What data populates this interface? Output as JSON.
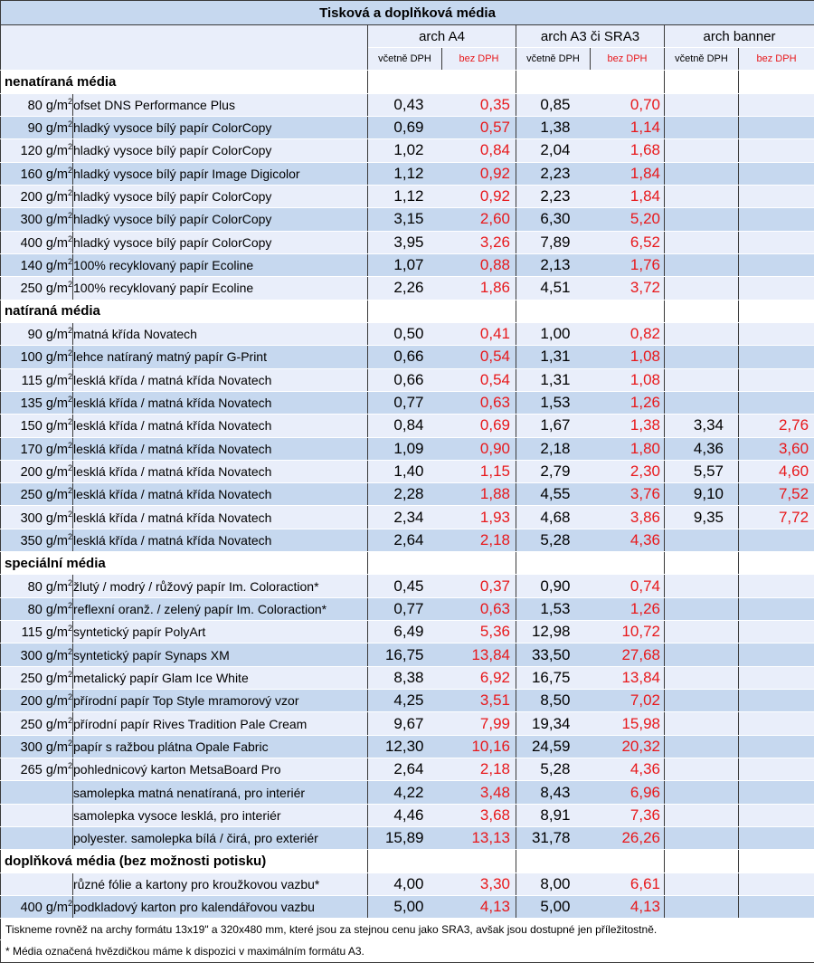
{
  "title": "Tisková a doplňková média",
  "columns": [
    {
      "name": "arch A4",
      "incl": "včetně DPH",
      "excl": "bez DPH"
    },
    {
      "name": "arch A3 či SRA3",
      "incl": "včetně DPH",
      "excl": "bez DPH"
    },
    {
      "name": "arch banner",
      "incl": "včetně DPH",
      "excl": "bez DPH"
    }
  ],
  "unit": "g/m",
  "unit_exp": "2",
  "sections": [
    {
      "title": "nenatíraná média",
      "rows": [
        {
          "w": "80",
          "item": "ofset DNS Performance Plus",
          "p": [
            "0,43",
            "0,35",
            "0,85",
            "0,70",
            "",
            ""
          ]
        },
        {
          "w": "90",
          "item": "hladký vysoce bílý papír ColorCopy",
          "p": [
            "0,69",
            "0,57",
            "1,38",
            "1,14",
            "",
            ""
          ]
        },
        {
          "w": "120",
          "item": "hladký vysoce bílý papír ColorCopy",
          "p": [
            "1,02",
            "0,84",
            "2,04",
            "1,68",
            "",
            ""
          ]
        },
        {
          "w": "160",
          "item": "hladký vysoce bílý papír Image Digicolor",
          "p": [
            "1,12",
            "0,92",
            "2,23",
            "1,84",
            "",
            ""
          ]
        },
        {
          "w": "200",
          "item": "hladký vysoce bílý papír ColorCopy",
          "p": [
            "1,12",
            "0,92",
            "2,23",
            "1,84",
            "",
            ""
          ]
        },
        {
          "w": "300",
          "item": "hladký vysoce bílý papír ColorCopy",
          "p": [
            "3,15",
            "2,60",
            "6,30",
            "5,20",
            "",
            ""
          ]
        },
        {
          "w": "400",
          "item": "hladký vysoce bílý papír ColorCopy",
          "p": [
            "3,95",
            "3,26",
            "7,89",
            "6,52",
            "",
            ""
          ]
        },
        {
          "w": "140",
          "item": "100% recyklovaný papír Ecoline",
          "p": [
            "1,07",
            "0,88",
            "2,13",
            "1,76",
            "",
            ""
          ]
        },
        {
          "w": "250",
          "item": "100% recyklovaný papír Ecoline",
          "p": [
            "2,26",
            "1,86",
            "4,51",
            "3,72",
            "",
            ""
          ]
        }
      ]
    },
    {
      "title": "natíraná média",
      "rows": [
        {
          "w": "90",
          "item": "matná křída Novatech",
          "p": [
            "0,50",
            "0,41",
            "1,00",
            "0,82",
            "",
            ""
          ]
        },
        {
          "w": "100",
          "item": "lehce natíraný matný papír G-Print",
          "p": [
            "0,66",
            "0,54",
            "1,31",
            "1,08",
            "",
            ""
          ]
        },
        {
          "w": "115",
          "item": "lesklá křída / matná křída Novatech",
          "p": [
            "0,66",
            "0,54",
            "1,31",
            "1,08",
            "",
            ""
          ]
        },
        {
          "w": "135",
          "item": "lesklá křída / matná křída Novatech",
          "p": [
            "0,77",
            "0,63",
            "1,53",
            "1,26",
            "",
            ""
          ]
        },
        {
          "w": "150",
          "item": "lesklá křída / matná křída Novatech",
          "p": [
            "0,84",
            "0,69",
            "1,67",
            "1,38",
            "3,34",
            "2,76"
          ]
        },
        {
          "w": "170",
          "item": "lesklá křída / matná křída Novatech",
          "p": [
            "1,09",
            "0,90",
            "2,18",
            "1,80",
            "4,36",
            "3,60"
          ]
        },
        {
          "w": "200",
          "item": "lesklá křída / matná křída Novatech",
          "p": [
            "1,40",
            "1,15",
            "2,79",
            "2,30",
            "5,57",
            "4,60"
          ]
        },
        {
          "w": "250",
          "item": "lesklá křída / matná křída Novatech",
          "p": [
            "2,28",
            "1,88",
            "4,55",
            "3,76",
            "9,10",
            "7,52"
          ]
        },
        {
          "w": "300",
          "item": "lesklá křída / matná křída Novatech",
          "p": [
            "2,34",
            "1,93",
            "4,68",
            "3,86",
            "9,35",
            "7,72"
          ]
        },
        {
          "w": "350",
          "item": "lesklá křída / matná křída Novatech",
          "p": [
            "2,64",
            "2,18",
            "5,28",
            "4,36",
            "",
            ""
          ]
        }
      ]
    },
    {
      "title": "speciální média",
      "rows": [
        {
          "w": "80",
          "item": "žlutý / modrý / růžový papír Im. Coloraction*",
          "p": [
            "0,45",
            "0,37",
            "0,90",
            "0,74",
            "",
            ""
          ]
        },
        {
          "w": "80",
          "item": "reflexní oranž. / zelený papír Im. Coloraction*",
          "p": [
            "0,77",
            "0,63",
            "1,53",
            "1,26",
            "",
            ""
          ]
        },
        {
          "w": "115",
          "item": "syntetický papír PolyArt",
          "p": [
            "6,49",
            "5,36",
            "12,98",
            "10,72",
            "",
            ""
          ]
        },
        {
          "w": "300",
          "item": "syntetický papír Synaps XM",
          "p": [
            "16,75",
            "13,84",
            "33,50",
            "27,68",
            "",
            ""
          ]
        },
        {
          "w": "250",
          "item": "metalický papír Glam Ice White",
          "p": [
            "8,38",
            "6,92",
            "16,75",
            "13,84",
            "",
            ""
          ]
        },
        {
          "w": "200",
          "item": "přírodní papír Top Style mramorový vzor",
          "p": [
            "4,25",
            "3,51",
            "8,50",
            "7,02",
            "",
            ""
          ]
        },
        {
          "w": "250",
          "item": "přírodní papír Rives Tradition Pale Cream",
          "p": [
            "9,67",
            "7,99",
            "19,34",
            "15,98",
            "",
            ""
          ]
        },
        {
          "w": "300",
          "item": "papír s ražbou plátna Opale Fabric",
          "p": [
            "12,30",
            "10,16",
            "24,59",
            "20,32",
            "",
            ""
          ]
        },
        {
          "w": "265",
          "item": "pohlednicový karton MetsaBoard Pro",
          "p": [
            "2,64",
            "2,18",
            "5,28",
            "4,36",
            "",
            ""
          ]
        },
        {
          "w": "",
          "item": "samolepka matná nenatíraná, pro interiér",
          "p": [
            "4,22",
            "3,48",
            "8,43",
            "6,96",
            "",
            ""
          ]
        },
        {
          "w": "",
          "item": "samolepka vysoce lesklá, pro interiér",
          "p": [
            "4,46",
            "3,68",
            "8,91",
            "7,36",
            "",
            ""
          ]
        },
        {
          "w": "",
          "item": "polyester. samolepka bílá / čirá, pro exteriér",
          "p": [
            "15,89",
            "13,13",
            "31,78",
            "26,26",
            "",
            ""
          ]
        }
      ]
    },
    {
      "title": "doplňková média (bez možnosti potisku)",
      "rows": [
        {
          "w": "",
          "item": "různé fólie a kartony pro kroužkovou vazbu*",
          "p": [
            "4,00",
            "3,30",
            "8,00",
            "6,61",
            "",
            ""
          ]
        },
        {
          "w": "400",
          "item": "podkladový karton pro kalendářovou vazbu",
          "p": [
            "5,00",
            "4,13",
            "5,00",
            "4,13",
            "",
            ""
          ]
        }
      ]
    }
  ],
  "notes": [
    "Tiskneme rovněž na archy formátu 13x19\" a 320x480 mm, které jsou za stejnou cenu jako SRA3, avšak jsou dostupné jen příležitostně.",
    "* Média označená hvězdičkou máme k dispozici v maximálním formátu A3."
  ],
  "colors": {
    "band_light": "#e9eefa",
    "band_dark": "#c6d8ef",
    "price_excl": "#e8181b"
  }
}
